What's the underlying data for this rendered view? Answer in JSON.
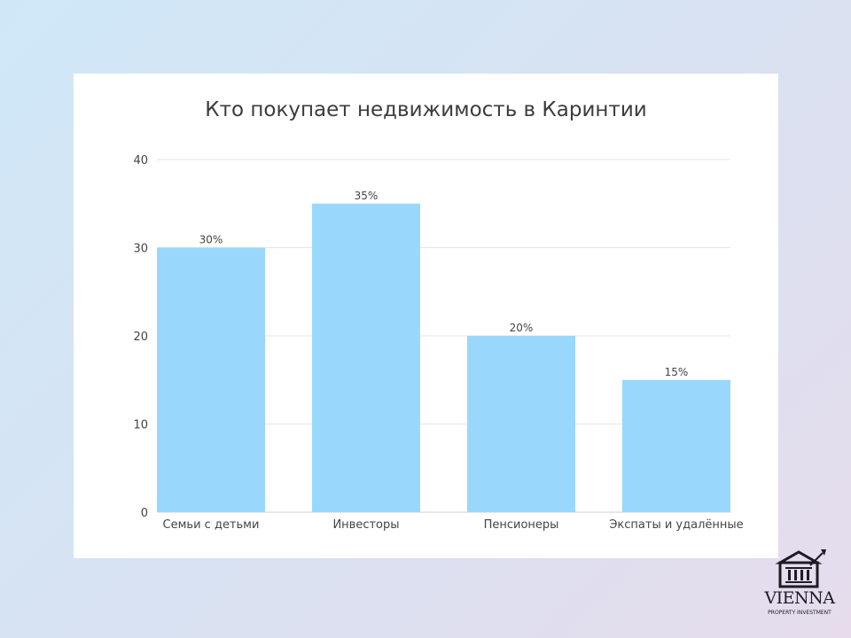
{
  "chart_data": {
    "type": "bar",
    "title": "Кто покупает недвижимость в Каринтии",
    "categories": [
      "Семьи с детьми",
      "Инвесторы",
      "Пенсионеры",
      "Экспаты и удалённые"
    ],
    "values": [
      30,
      35,
      20,
      15
    ],
    "data_labels": [
      "30%",
      "35%",
      "20%",
      "15%"
    ],
    "ylim": [
      0,
      40
    ],
    "yticks": [
      0,
      10,
      20,
      30,
      40
    ],
    "grid": true,
    "bar_color": "#99d8fc"
  },
  "logo": {
    "name": "VIENNA",
    "tagline": "PROPERTY INVESTMENT"
  }
}
